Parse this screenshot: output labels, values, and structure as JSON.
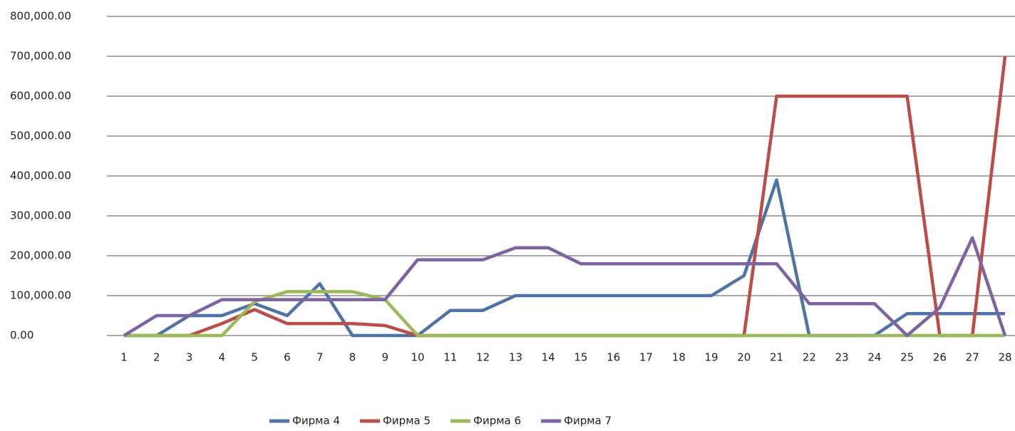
{
  "chart_data": {
    "type": "line",
    "categories": [
      "1",
      "2",
      "3",
      "4",
      "5",
      "6",
      "7",
      "8",
      "9",
      "10",
      "11",
      "12",
      "13",
      "14",
      "15",
      "16",
      "17",
      "18",
      "19",
      "20",
      "21",
      "22",
      "23",
      "24",
      "25",
      "26",
      "27",
      "28"
    ],
    "series": [
      {
        "name": "Фирма 4",
        "color": "#4f73a6",
        "values": [
          0,
          0,
          50000,
          50000,
          80000,
          50000,
          130000,
          0,
          0,
          0,
          63000,
          63000,
          100000,
          100000,
          100000,
          100000,
          100000,
          100000,
          100000,
          150000,
          390000,
          0,
          0,
          0,
          55000,
          55000,
          55000,
          55000
        ]
      },
      {
        "name": "Фирма 5",
        "color": "#bd4b48",
        "values": [
          0,
          0,
          0,
          30000,
          65000,
          30000,
          30000,
          30000,
          25000,
          0,
          0,
          0,
          0,
          0,
          0,
          0,
          0,
          0,
          0,
          0,
          600000,
          600000,
          600000,
          600000,
          600000,
          0,
          0,
          700000
        ]
      },
      {
        "name": "Фирма 6",
        "color": "#9aba59",
        "values": [
          0,
          0,
          0,
          0,
          85000,
          110000,
          110000,
          110000,
          90000,
          0,
          0,
          0,
          0,
          0,
          0,
          0,
          0,
          0,
          0,
          0,
          0,
          0,
          0,
          0,
          0,
          0,
          0,
          0
        ]
      },
      {
        "name": "Фирма 7",
        "color": "#7e62a1",
        "values": [
          0,
          50000,
          50000,
          90000,
          90000,
          90000,
          90000,
          90000,
          90000,
          190000,
          190000,
          190000,
          220000,
          220000,
          180000,
          180000,
          180000,
          180000,
          180000,
          180000,
          180000,
          80000,
          80000,
          80000,
          0,
          70000,
          245000,
          0
        ]
      }
    ],
    "ylim": [
      0,
      800000
    ],
    "yticks": [
      {
        "value": 0,
        "label": "0.00"
      },
      {
        "value": 100000,
        "label": "100,000.00"
      },
      {
        "value": 200000,
        "label": "200,000.00"
      },
      {
        "value": 300000,
        "label": "300,000.00"
      },
      {
        "value": 400000,
        "label": "400,000.00"
      },
      {
        "value": 500000,
        "label": "500,000.00"
      },
      {
        "value": 600000,
        "label": "600,000.00"
      },
      {
        "value": 700000,
        "label": "700,000.00"
      },
      {
        "value": 800000,
        "label": "800,000.00"
      }
    ],
    "grid": true,
    "legend": "bottom"
  }
}
